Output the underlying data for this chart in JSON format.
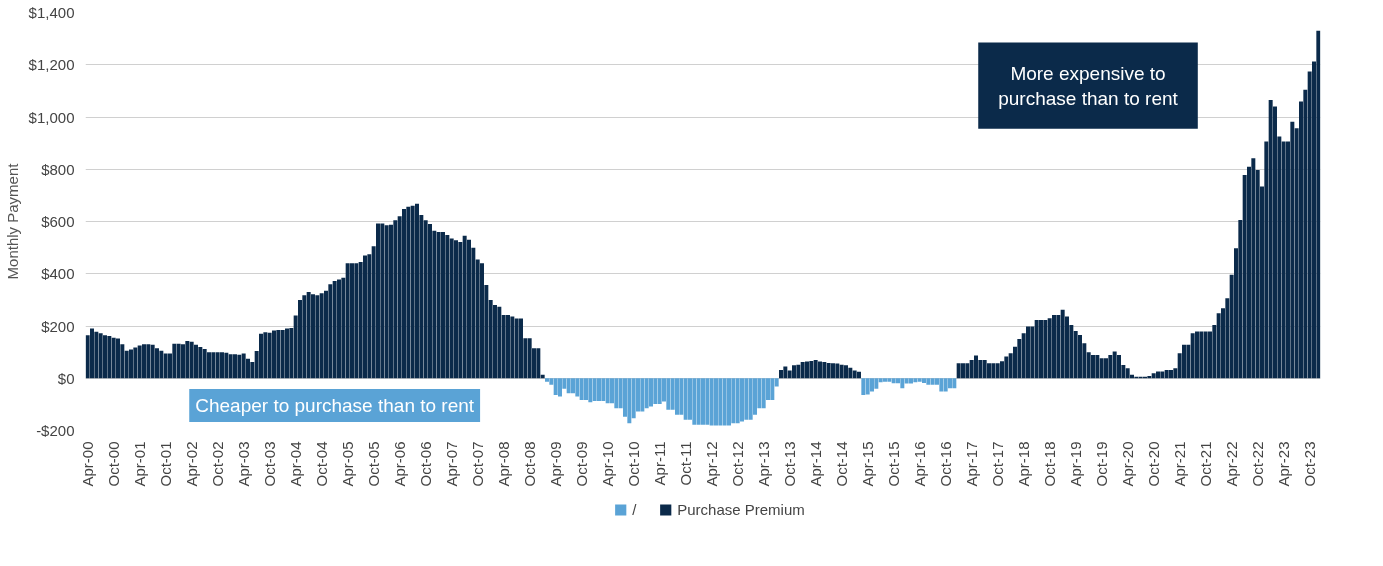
{
  "chart_data": {
    "type": "bar",
    "ylabel": "Monthly Payment",
    "categories": [
      "Apr-00",
      null,
      null,
      null,
      null,
      null,
      "Oct-00",
      null,
      null,
      null,
      null,
      null,
      "Apr-01",
      null,
      null,
      null,
      null,
      null,
      "Oct-01",
      null,
      null,
      null,
      null,
      null,
      "Apr-02",
      null,
      null,
      null,
      null,
      null,
      "Oct-02",
      null,
      null,
      null,
      null,
      null,
      "Apr-03",
      null,
      null,
      null,
      null,
      null,
      "Oct-03",
      null,
      null,
      null,
      null,
      null,
      "Apr-04",
      null,
      null,
      null,
      null,
      null,
      "Oct-04",
      null,
      null,
      null,
      null,
      null,
      "Apr-05",
      null,
      null,
      null,
      null,
      null,
      "Oct-05",
      null,
      null,
      null,
      null,
      null,
      "Apr-06",
      null,
      null,
      null,
      null,
      null,
      "Oct-06",
      null,
      null,
      null,
      null,
      null,
      "Apr-07",
      null,
      null,
      null,
      null,
      null,
      "Oct-07",
      null,
      null,
      null,
      null,
      null,
      "Apr-08",
      null,
      null,
      null,
      null,
      null,
      "Oct-08",
      null,
      null,
      null,
      null,
      null,
      "Apr-09",
      null,
      null,
      null,
      null,
      null,
      "Oct-09",
      null,
      null,
      null,
      null,
      null,
      "Apr-10",
      null,
      null,
      null,
      null,
      null,
      "Oct-10",
      null,
      null,
      null,
      null,
      null,
      "Apr-11",
      null,
      null,
      null,
      null,
      null,
      "Oct-11",
      null,
      null,
      null,
      null,
      null,
      "Apr-12",
      null,
      null,
      null,
      null,
      null,
      "Oct-12",
      null,
      null,
      null,
      null,
      null,
      "Apr-13",
      null,
      null,
      null,
      null,
      null,
      "Oct-13",
      null,
      null,
      null,
      null,
      null,
      "Apr-14",
      null,
      null,
      null,
      null,
      null,
      "Oct-14",
      null,
      null,
      null,
      null,
      null,
      "Apr-15",
      null,
      null,
      null,
      null,
      null,
      "Oct-15",
      null,
      null,
      null,
      null,
      null,
      "Apr-16",
      null,
      null,
      null,
      null,
      null,
      "Oct-16",
      null,
      null,
      null,
      null,
      null,
      "Apr-17",
      null,
      null,
      null,
      null,
      null,
      "Oct-17",
      null,
      null,
      null,
      null,
      null,
      "Apr-18",
      null,
      null,
      null,
      null,
      null,
      "Oct-18",
      null,
      null,
      null,
      null,
      null,
      "Apr-19",
      null,
      null,
      null,
      null,
      null,
      "Oct-19",
      null,
      null,
      null,
      null,
      null,
      "Apr-20",
      null,
      null,
      null,
      null,
      null,
      "Oct-20",
      null,
      null,
      null,
      null,
      null,
      "Apr-21",
      null,
      null,
      null,
      null,
      null,
      "Oct-21",
      null,
      null,
      null,
      null,
      null,
      "Apr-22",
      null,
      null,
      null,
      null,
      null,
      "Oct-22",
      null,
      null,
      null,
      null,
      null,
      "Apr-23",
      null,
      null,
      null,
      null,
      null,
      "Oct-23",
      null,
      null
    ],
    "series": [
      {
        "name": "/",
        "color": "#5aa3d6",
        "values": [
          null,
          null,
          null,
          null,
          null,
          null,
          null,
          null,
          null,
          null,
          null,
          null,
          null,
          null,
          null,
          null,
          null,
          null,
          null,
          null,
          null,
          null,
          null,
          null,
          null,
          null,
          null,
          null,
          null,
          null,
          null,
          null,
          null,
          null,
          null,
          null,
          null,
          null,
          null,
          null,
          null,
          null,
          null,
          null,
          null,
          null,
          null,
          null,
          null,
          null,
          null,
          null,
          null,
          null,
          null,
          null,
          null,
          null,
          null,
          null,
          null,
          null,
          null,
          null,
          null,
          null,
          null,
          null,
          null,
          null,
          null,
          null,
          null,
          null,
          null,
          null,
          null,
          null,
          null,
          null,
          null,
          null,
          null,
          null,
          null,
          null,
          null,
          null,
          null,
          null,
          null,
          null,
          null,
          null,
          null,
          null,
          null,
          null,
          null,
          null,
          null,
          null,
          null,
          null,
          null,
          null,
          -13,
          -25,
          -64,
          -70,
          -40,
          -57,
          -57,
          -70,
          -83,
          -83,
          -92,
          -87,
          -87,
          -87,
          -96,
          -96,
          -115,
          -115,
          -147,
          -172,
          -153,
          -127,
          -127,
          -115,
          -108,
          -99,
          -99,
          -89,
          -121,
          -121,
          -140,
          -140,
          -159,
          -159,
          -178,
          -178,
          -178,
          -178,
          -181,
          -181,
          -181,
          -181,
          -181,
          -172,
          -172,
          -166,
          -159,
          -159,
          -140,
          -115,
          -115,
          -83,
          -83,
          -32,
          null,
          null,
          null,
          null,
          null,
          null,
          null,
          null,
          null,
          null,
          null,
          null,
          null,
          null,
          null,
          null,
          null,
          null,
          null,
          -64,
          -62,
          -51,
          -40,
          -15,
          -13,
          -13,
          -19,
          -19,
          -38,
          -20,
          -20,
          -15,
          -13,
          -18,
          -25,
          -25,
          -25,
          -51,
          -51,
          -38,
          -38,
          null,
          null,
          null,
          null,
          null,
          null,
          null,
          null,
          null,
          null,
          null,
          null,
          null,
          null,
          null,
          null,
          null,
          null,
          null,
          null,
          null,
          null,
          null,
          null,
          null,
          null,
          null,
          null,
          null,
          null,
          null,
          null,
          null,
          null,
          null,
          null,
          null,
          null,
          null,
          null,
          null,
          null,
          null,
          null,
          null,
          null,
          null,
          null,
          null,
          null,
          null,
          null,
          null,
          null,
          null,
          null,
          null,
          null,
          null,
          null,
          null,
          null,
          null,
          null,
          null,
          null,
          null,
          null,
          null,
          null,
          null,
          null,
          null,
          null,
          null,
          null,
          null,
          null,
          null,
          null,
          null,
          null,
          null,
          null
        ]
      },
      {
        "name": "Purchase Premium",
        "color": "#0b2a4a",
        "values": [
          165,
          190,
          178,
          172,
          165,
          162,
          155,
          152,
          130,
          105,
          110,
          118,
          125,
          130,
          130,
          128,
          115,
          105,
          95,
          95,
          132,
          132,
          130,
          143,
          140,
          128,
          120,
          112,
          100,
          100,
          100,
          100,
          98,
          92,
          92,
          90,
          95,
          75,
          62,
          104,
          170,
          176,
          174,
          183,
          185,
          185,
          190,
          192,
          240,
          300,
          318,
          330,
          322,
          318,
          325,
          335,
          360,
          372,
          378,
          385,
          440,
          440,
          440,
          445,
          470,
          475,
          505,
          592,
          592,
          586,
          588,
          605,
          620,
          648,
          656,
          660,
          668,
          625,
          605,
          590,
          565,
          560,
          560,
          548,
          535,
          528,
          522,
          545,
          530,
          500,
          455,
          440,
          357,
          300,
          280,
          274,
          242,
          242,
          236,
          229,
          229,
          153,
          153,
          115,
          115,
          13,
          null,
          null,
          null,
          null,
          null,
          null,
          null,
          null,
          null,
          null,
          null,
          null,
          null,
          null,
          null,
          null,
          null,
          null,
          null,
          null,
          null,
          null,
          null,
          null,
          null,
          null,
          null,
          null,
          null,
          null,
          null,
          null,
          null,
          null,
          null,
          null,
          null,
          null,
          null,
          null,
          null,
          null,
          null,
          null,
          null,
          null,
          null,
          null,
          null,
          null,
          null,
          null,
          null,
          null,
          32,
          45,
          30,
          50,
          52,
          62,
          64,
          66,
          70,
          64,
          62,
          58,
          57,
          56,
          52,
          50,
          40,
          30,
          25,
          null,
          null,
          null,
          null,
          null,
          null,
          null,
          null,
          null,
          null,
          null,
          null,
          null,
          null,
          null,
          null,
          null,
          null,
          null,
          null,
          null,
          null,
          57,
          57,
          57,
          70,
          87,
          70,
          70,
          57,
          57,
          57,
          65,
          83,
          96,
          121,
          150,
          172,
          198,
          198,
          223,
          223,
          223,
          230,
          242,
          242,
          262,
          236,
          204,
          181,
          166,
          134,
          100,
          89,
          89,
          77,
          77,
          89,
          102,
          89,
          51,
          38,
          13,
          6,
          6,
          6,
          9,
          19,
          26,
          26,
          32,
          32,
          38,
          96,
          128,
          128,
          172,
          179,
          179,
          179,
          179,
          204,
          249,
          268,
          306,
          396,
          498,
          606,
          778,
          810,
          842,
          797,
          734,
          906,
          1065,
          1040,
          925,
          906,
          906,
          982,
          957,
          1059,
          1104,
          1174,
          1212,
          1330
        ]
      }
    ],
    "ylim": [
      -200,
      1400
    ],
    "yticks": [
      {
        "value": -200,
        "label": "-$200"
      },
      {
        "value": 0,
        "label": "$0"
      },
      {
        "value": 200,
        "label": "$200"
      },
      {
        "value": 400,
        "label": "$400"
      },
      {
        "value": 600,
        "label": "$600"
      },
      {
        "value": 800,
        "label": "$800"
      },
      {
        "value": 1000,
        "label": "$1,000"
      },
      {
        "value": 1200,
        "label": "$1,200"
      },
      {
        "value": 1400,
        "label": "$1,400"
      }
    ],
    "grid": "y",
    "legend": "bottom",
    "annotations": [
      "More expensive to purchase than to rent",
      "Cheaper to purchase than to rent"
    ]
  }
}
